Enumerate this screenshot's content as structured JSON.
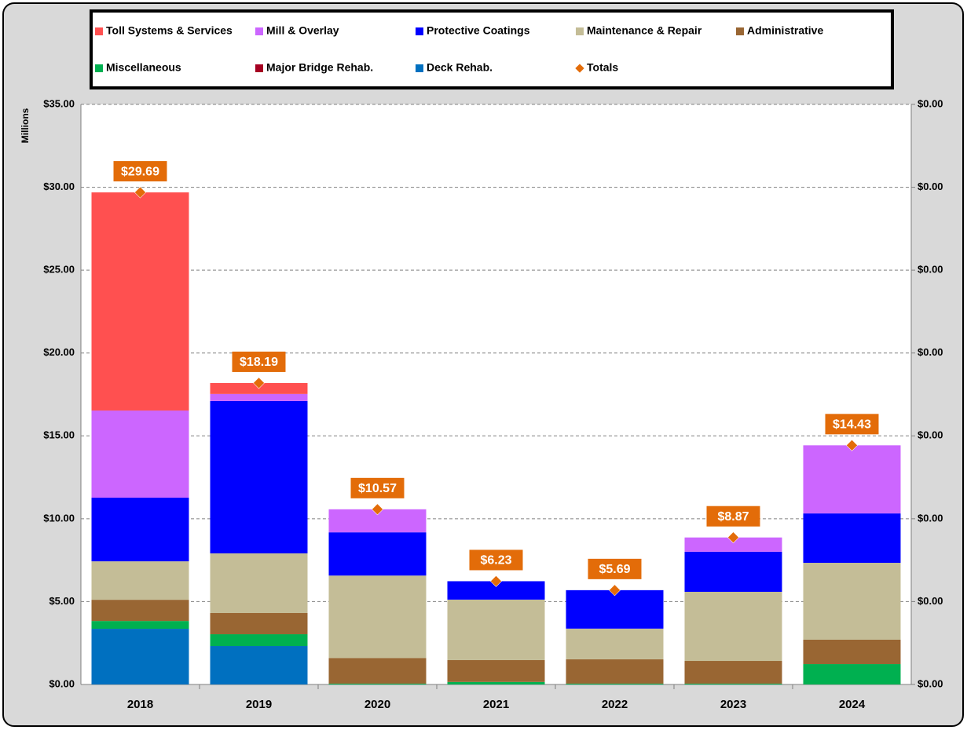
{
  "chart_data": {
    "type": "stacked-bar",
    "y_label": "Millions",
    "categories": [
      "2018",
      "2019",
      "2020",
      "2021",
      "2022",
      "2023",
      "2024"
    ],
    "series": [
      {
        "name": "Toll Systems & Services",
        "color": "#ff5050",
        "values": [
          13.16,
          0.66,
          0,
          0,
          0,
          0,
          0
        ]
      },
      {
        "name": "Mill & Overlay",
        "color": "#cc66ff",
        "values": [
          5.26,
          0.43,
          1.39,
          0,
          0,
          0.86,
          4.11
        ]
      },
      {
        "name": "Protective Coatings",
        "color": "#0000ff",
        "values": [
          3.84,
          9.19,
          2.61,
          1.11,
          2.32,
          2.42,
          2.98
        ]
      },
      {
        "name": "Maintenance & Repair",
        "color": "#c4bd97",
        "values": [
          2.32,
          3.6,
          4.97,
          3.65,
          1.85,
          4.17,
          4.64
        ]
      },
      {
        "name": "Administrative",
        "color": "#996633",
        "values": [
          1.28,
          1.28,
          1.55,
          1.32,
          1.47,
          1.37,
          1.47
        ]
      },
      {
        "name": "Miscellaneous",
        "color": "#00b050",
        "values": [
          0.47,
          0.71,
          0.05,
          0.15,
          0.05,
          0.05,
          1.23
        ]
      },
      {
        "name": "Major Bridge Rehab.",
        "color": "#a50021",
        "values": [
          0,
          0,
          0,
          0,
          0,
          0,
          0
        ]
      },
      {
        "name": "Deck Rehab.",
        "color": "#0070c0",
        "values": [
          3.36,
          2.32,
          0,
          0,
          0,
          0,
          0
        ]
      },
      {
        "name": "Totals",
        "color": "#e36c09",
        "marker": "diamond",
        "values": [
          29.69,
          18.19,
          10.57,
          6.23,
          5.69,
          8.87,
          14.43
        ],
        "value_labels": [
          "$29.69",
          "$18.19",
          "$10.57",
          "$6.23",
          "$5.69",
          "$8.87",
          "$14.43"
        ]
      }
    ],
    "ylim": [
      0,
      35
    ],
    "yticks": [
      {
        "value": 0,
        "label": "$0.00"
      },
      {
        "value": 5,
        "label": "$5.00"
      },
      {
        "value": 10,
        "label": "$10.00"
      },
      {
        "value": 15,
        "label": "$15.00"
      },
      {
        "value": 20,
        "label": "$20.00"
      },
      {
        "value": 25,
        "label": "$25.00"
      },
      {
        "value": 30,
        "label": "$30.00"
      },
      {
        "value": 35,
        "label": "$35.00"
      }
    ],
    "y2lim": [
      0,
      0.007
    ],
    "y2ticks": [
      {
        "value": 0,
        "label": "$0.00"
      },
      {
        "value": 0.001,
        "label": "$0.00"
      },
      {
        "value": 0.002,
        "label": "$0.00"
      },
      {
        "value": 0.003,
        "label": "$0.00"
      },
      {
        "value": 0.004,
        "label": "$0.00"
      },
      {
        "value": 0.005,
        "label": "$0.00"
      },
      {
        "value": 0.006,
        "label": "$0.00"
      },
      {
        "value": 0.007,
        "label": "$0.00"
      }
    ],
    "grid": true
  }
}
